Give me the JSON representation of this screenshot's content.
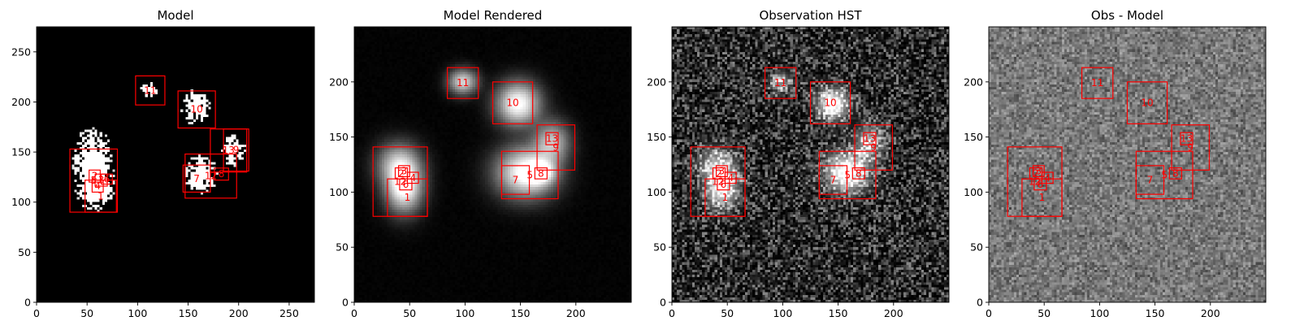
{
  "chart_data": [
    {
      "type": "image",
      "title": "Model",
      "xlim": [
        0,
        275
      ],
      "ylim": [
        0,
        275
      ],
      "xticks": [
        0,
        50,
        100,
        150,
        200,
        250
      ],
      "yticks": [
        0,
        50,
        100,
        150,
        200,
        250
      ],
      "image_style": "sparse",
      "blobs": [
        {
          "x": 55,
          "y": 140,
          "sx": 12,
          "sy": 22,
          "amp": 1.0
        },
        {
          "x": 60,
          "y": 112,
          "sx": 10,
          "sy": 12,
          "amp": 0.9
        },
        {
          "x": 112,
          "y": 212,
          "sx": 6,
          "sy": 5,
          "amp": 0.9
        },
        {
          "x": 158,
          "y": 195,
          "sx": 9,
          "sy": 11,
          "amp": 1.0
        },
        {
          "x": 163,
          "y": 128,
          "sx": 10,
          "sy": 12,
          "amp": 1.0
        },
        {
          "x": 195,
          "y": 152,
          "sx": 7,
          "sy": 10,
          "amp": 1.0
        }
      ],
      "boxes": [
        {
          "label": "1",
          "x0": 48,
          "y0": 90,
          "x1": 79,
          "y1": 122
        },
        {
          "label": "2",
          "x0": 52,
          "y0": 120,
          "x1": 63,
          "y1": 132
        },
        {
          "label": "3",
          "x0": 58,
          "y0": 116,
          "x1": 70,
          "y1": 128
        },
        {
          "label": "4",
          "x0": 55,
          "y0": 110,
          "x1": 66,
          "y1": 122
        },
        {
          "label": "5",
          "x0": 33,
          "y0": 90,
          "x1": 80,
          "y1": 153
        },
        {
          "label": "6",
          "x0": 64,
          "y0": 118,
          "x1": 75,
          "y1": 128
        },
        {
          "label": "7",
          "x0": 145,
          "y0": 110,
          "x1": 172,
          "y1": 137
        },
        {
          "label": "8",
          "x0": 176,
          "y0": 122,
          "x1": 190,
          "y1": 134
        },
        {
          "label": "9",
          "x0": 185,
          "y0": 131,
          "x1": 210,
          "y1": 173
        },
        {
          "label": "10",
          "x0": 140,
          "y0": 174,
          "x1": 177,
          "y1": 211
        },
        {
          "label": "11",
          "x0": 98,
          "y0": 197,
          "x1": 127,
          "y1": 226
        },
        {
          "label": "12",
          "x0": 147,
          "y0": 104,
          "x1": 198,
          "y1": 148
        },
        {
          "label": "13",
          "x0": 172,
          "y0": 130,
          "x1": 208,
          "y1": 173
        }
      ]
    },
    {
      "type": "image",
      "title": "Model Rendered",
      "xlim": [
        0,
        250
      ],
      "ylim": [
        0,
        250
      ],
      "xticks": [
        0,
        50,
        100,
        150,
        200
      ],
      "yticks": [
        0,
        50,
        100,
        150,
        200
      ],
      "image_style": "smooth",
      "blobs": [
        {
          "x": 45,
          "y": 105,
          "sx": 10,
          "sy": 14,
          "amp": 1.0
        },
        {
          "x": 40,
          "y": 125,
          "sx": 12,
          "sy": 12,
          "amp": 0.6
        },
        {
          "x": 98,
          "y": 200,
          "sx": 8,
          "sy": 7,
          "amp": 0.7
        },
        {
          "x": 148,
          "y": 180,
          "sx": 12,
          "sy": 12,
          "amp": 0.95
        },
        {
          "x": 155,
          "y": 118,
          "sx": 16,
          "sy": 14,
          "amp": 1.0
        },
        {
          "x": 168,
          "y": 118,
          "sx": 8,
          "sy": 7,
          "amp": 0.8
        },
        {
          "x": 178,
          "y": 145,
          "sx": 10,
          "sy": 12,
          "amp": 0.6
        }
      ],
      "boxes": [
        {
          "label": "1",
          "x0": 30,
          "y0": 78,
          "x1": 66,
          "y1": 112
        },
        {
          "label": "2",
          "x0": 37,
          "y0": 112,
          "x1": 48,
          "y1": 122
        },
        {
          "label": "3",
          "x0": 40,
          "y0": 114,
          "x1": 50,
          "y1": 124
        },
        {
          "label": "4",
          "x0": 48,
          "y0": 108,
          "x1": 58,
          "y1": 118
        },
        {
          "label": "5",
          "x0": 133,
          "y0": 94,
          "x1": 184,
          "y1": 137
        },
        {
          "label": "6",
          "x0": 41,
          "y0": 102,
          "x1": 52,
          "y1": 112
        },
        {
          "label": "7",
          "x0": 133,
          "y0": 98,
          "x1": 158,
          "y1": 124
        },
        {
          "label": "8",
          "x0": 163,
          "y0": 112,
          "x1": 174,
          "y1": 122
        },
        {
          "label": "9",
          "x0": 165,
          "y0": 120,
          "x1": 199,
          "y1": 161
        },
        {
          "label": "10",
          "x0": 125,
          "y0": 162,
          "x1": 161,
          "y1": 200
        },
        {
          "label": "11",
          "x0": 84,
          "y0": 185,
          "x1": 112,
          "y1": 213
        },
        {
          "label": "12",
          "x0": 17,
          "y0": 78,
          "x1": 66,
          "y1": 141
        },
        {
          "label": "13",
          "x0": 173,
          "y0": 143,
          "x1": 184,
          "y1": 154
        }
      ]
    },
    {
      "type": "image",
      "title": "Observation HST",
      "xlim": [
        0,
        250
      ],
      "ylim": [
        0,
        250
      ],
      "xticks": [
        0,
        50,
        100,
        150,
        200
      ],
      "yticks": [
        0,
        50,
        100,
        150,
        200
      ],
      "image_style": "noisy",
      "blobs": [
        {
          "x": 45,
          "y": 105,
          "sx": 9,
          "sy": 12,
          "amp": 0.9
        },
        {
          "x": 40,
          "y": 125,
          "sx": 10,
          "sy": 10,
          "amp": 0.5
        },
        {
          "x": 98,
          "y": 200,
          "sx": 6,
          "sy": 6,
          "amp": 0.45
        },
        {
          "x": 145,
          "y": 180,
          "sx": 9,
          "sy": 9,
          "amp": 0.95
        },
        {
          "x": 158,
          "y": 118,
          "sx": 12,
          "sy": 11,
          "amp": 1.0
        },
        {
          "x": 178,
          "y": 145,
          "sx": 8,
          "sy": 10,
          "amp": 0.55
        }
      ],
      "boxes": [
        {
          "label": "1",
          "x0": 30,
          "y0": 78,
          "x1": 66,
          "y1": 112
        },
        {
          "label": "2",
          "x0": 37,
          "y0": 112,
          "x1": 48,
          "y1": 122
        },
        {
          "label": "3",
          "x0": 40,
          "y0": 114,
          "x1": 50,
          "y1": 124
        },
        {
          "label": "4",
          "x0": 48,
          "y0": 108,
          "x1": 58,
          "y1": 118
        },
        {
          "label": "5",
          "x0": 133,
          "y0": 94,
          "x1": 184,
          "y1": 137
        },
        {
          "label": "6",
          "x0": 41,
          "y0": 102,
          "x1": 52,
          "y1": 112
        },
        {
          "label": "7",
          "x0": 133,
          "y0": 98,
          "x1": 158,
          "y1": 124
        },
        {
          "label": "8",
          "x0": 163,
          "y0": 112,
          "x1": 174,
          "y1": 122
        },
        {
          "label": "9",
          "x0": 165,
          "y0": 120,
          "x1": 199,
          "y1": 161
        },
        {
          "label": "10",
          "x0": 125,
          "y0": 162,
          "x1": 161,
          "y1": 200
        },
        {
          "label": "11",
          "x0": 84,
          "y0": 185,
          "x1": 112,
          "y1": 213
        },
        {
          "label": "12",
          "x0": 17,
          "y0": 78,
          "x1": 66,
          "y1": 141
        },
        {
          "label": "13",
          "x0": 173,
          "y0": 143,
          "x1": 184,
          "y1": 154
        }
      ]
    },
    {
      "type": "image",
      "title": "Obs - Model",
      "xlim": [
        0,
        250
      ],
      "ylim": [
        0,
        250
      ],
      "xticks": [
        0,
        50,
        100,
        150,
        200
      ],
      "yticks": [
        0,
        50,
        100,
        150,
        200
      ],
      "image_style": "residual",
      "blobs": [],
      "boxes": [
        {
          "label": "1",
          "x0": 30,
          "y0": 78,
          "x1": 66,
          "y1": 112
        },
        {
          "label": "2",
          "x0": 37,
          "y0": 112,
          "x1": 48,
          "y1": 122
        },
        {
          "label": "3",
          "x0": 40,
          "y0": 114,
          "x1": 50,
          "y1": 124
        },
        {
          "label": "4",
          "x0": 48,
          "y0": 108,
          "x1": 58,
          "y1": 118
        },
        {
          "label": "5",
          "x0": 133,
          "y0": 94,
          "x1": 184,
          "y1": 137
        },
        {
          "label": "6",
          "x0": 41,
          "y0": 102,
          "x1": 52,
          "y1": 112
        },
        {
          "label": "7",
          "x0": 133,
          "y0": 98,
          "x1": 158,
          "y1": 124
        },
        {
          "label": "8",
          "x0": 163,
          "y0": 112,
          "x1": 174,
          "y1": 122
        },
        {
          "label": "9",
          "x0": 165,
          "y0": 120,
          "x1": 199,
          "y1": 161
        },
        {
          "label": "10",
          "x0": 125,
          "y0": 162,
          "x1": 161,
          "y1": 200
        },
        {
          "label": "11",
          "x0": 84,
          "y0": 185,
          "x1": 112,
          "y1": 213
        },
        {
          "label": "12",
          "x0": 17,
          "y0": 78,
          "x1": 66,
          "y1": 141
        },
        {
          "label": "13",
          "x0": 173,
          "y0": 143,
          "x1": 184,
          "y1": 154
        }
      ]
    }
  ],
  "colors": {
    "box": "#ff0000",
    "label": "#ff0000",
    "axis": "#000000",
    "background": "#ffffff"
  }
}
